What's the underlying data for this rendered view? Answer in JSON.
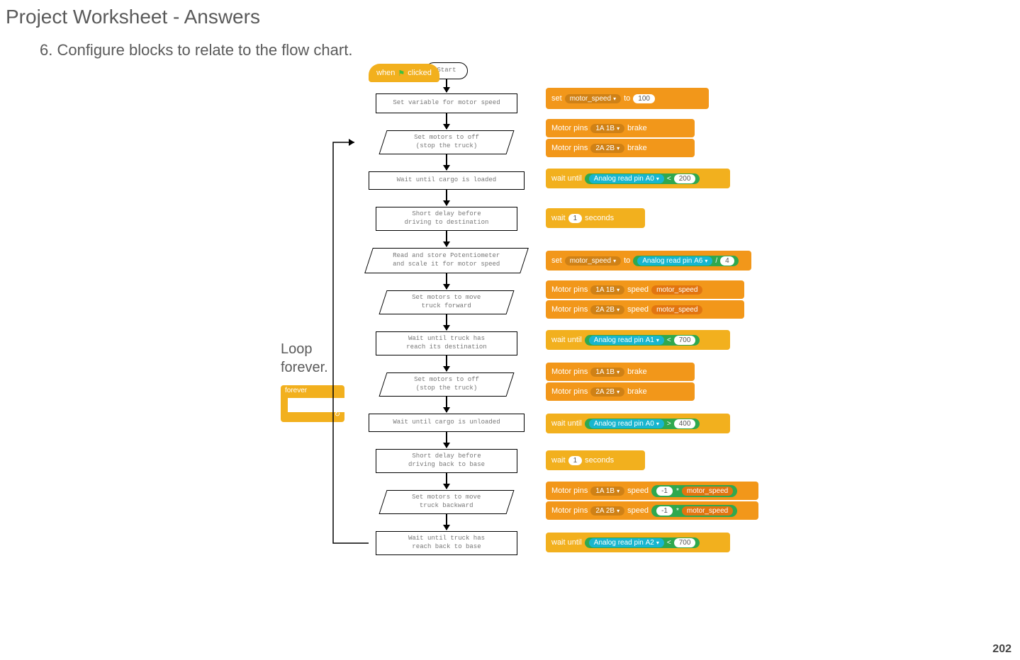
{
  "title": "Project Worksheet - Answers",
  "instruction": "6. Configure blocks to relate to the flow chart.",
  "page_number": "202",
  "loop_label_line1": "Loop",
  "loop_label_line2": "forever.",
  "forever_text": "forever",
  "colors": {
    "orange": "#f2971a",
    "orange_dark": "#e58a17",
    "amber": "#f2b01e",
    "cyan": "#18b6cf",
    "green": "#2fa84f",
    "text_gray": "#5a5a5a",
    "flow_text": "#777777",
    "white": "#ffffff"
  },
  "flow": {
    "n0": "Start",
    "n1": "Set variable for motor speed",
    "n2": "Set motors to off\n(stop the truck)",
    "n3": "Wait until cargo is loaded",
    "n4": "Short delay before\ndriving to destination",
    "n5": "Read and store Potentiometer\nand scale it for motor speed",
    "n6": "Set motors to move\ntruck forward",
    "n7": "Wait until truck has\nreach its destination",
    "n8": "Set motors to off\n(stop the truck)",
    "n9": "Wait until cargo is unloaded",
    "n10": "Short delay before\ndriving back to base",
    "n11": "Set motors to move\ntruck backward",
    "n12": "Wait until truck has\nreach back to base"
  },
  "blocks": {
    "hat": {
      "prefix": "when",
      "suffix": "clicked",
      "flag": "⚑"
    },
    "set_var": {
      "word_set": "set",
      "var": "motor_speed",
      "word_to": "to",
      "val": "100"
    },
    "motor_brake_1a": {
      "label": "Motor pins",
      "pins": "1A 1B",
      "mode": "brake"
    },
    "motor_brake_2a": {
      "label": "Motor pins",
      "pins": "2A 2B",
      "mode": "brake"
    },
    "wait_until": "wait until",
    "analog_read": "Analog read pin",
    "pin_a0": "A0",
    "pin_a1": "A1",
    "pin_a2": "A2",
    "pin_a6": "A6",
    "lt": "<",
    "gt": ">",
    "thresh_200": "200",
    "thresh_700": "700",
    "thresh_400": "400",
    "wait_label": "wait",
    "wait_secs": "1",
    "seconds": "seconds",
    "set_ms_expr": {
      "word_set": "set",
      "var": "motor_speed",
      "word_to": "to",
      "div": "/",
      "divisor": "4"
    },
    "motor_speed_1a": {
      "label": "Motor pins",
      "pins": "1A 1B",
      "word": "speed",
      "val": "motor_speed"
    },
    "motor_speed_2a": {
      "label": "Motor pins",
      "pins": "2A 2B",
      "word": "speed",
      "val": "motor_speed"
    },
    "neg1": "-1",
    "times": "*"
  }
}
